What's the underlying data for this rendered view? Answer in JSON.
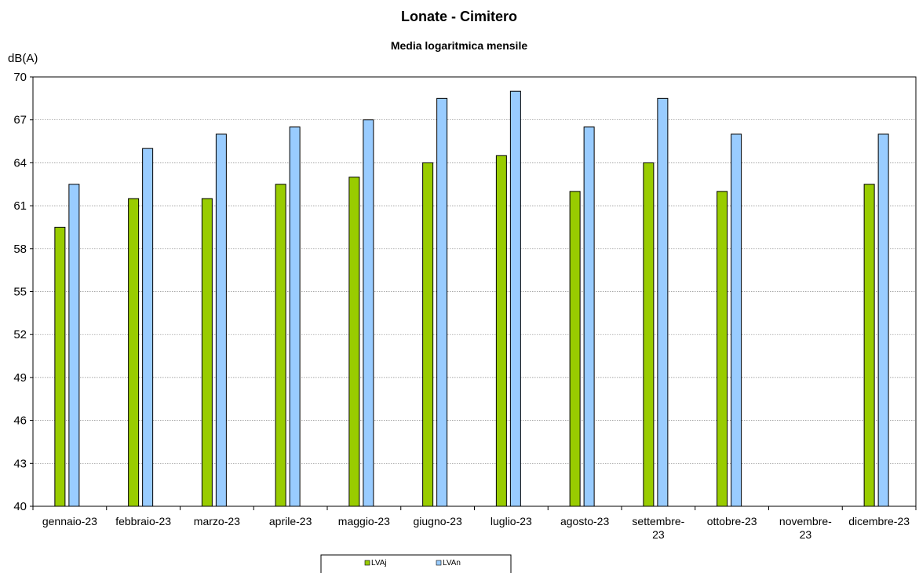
{
  "chart_data": {
    "type": "bar",
    "title": "Lonate - Cimitero",
    "subtitle": "Media logaritmica mensile",
    "ylabel": "dB(A)",
    "ylim": [
      40,
      70
    ],
    "yticks": [
      "40",
      "43",
      "46",
      "49",
      "52",
      "55",
      "58",
      "61",
      "64",
      "67",
      "70"
    ],
    "grid": true,
    "legend_position": "bottom",
    "categories": [
      [
        "gennaio-23"
      ],
      [
        "febbraio-23"
      ],
      [
        "marzo-23"
      ],
      [
        "aprile-23"
      ],
      [
        "maggio-23"
      ],
      [
        "giugno-23"
      ],
      [
        "luglio-23"
      ],
      [
        "agosto-23"
      ],
      [
        "settembre-",
        "23"
      ],
      [
        "ottobre-23"
      ],
      [
        "novembre-",
        "23"
      ],
      [
        "dicembre-23"
      ]
    ],
    "series": [
      {
        "name": "LVAj",
        "color": "#99cc00",
        "values": [
          59.5,
          61.5,
          61.5,
          62.5,
          63.0,
          64.0,
          64.5,
          62.0,
          64.0,
          62.0,
          null,
          62.5
        ]
      },
      {
        "name": "LVAn",
        "color": "#99ccff",
        "values": [
          62.5,
          65.0,
          66.0,
          66.5,
          67.0,
          68.5,
          69.0,
          66.5,
          68.5,
          66.0,
          null,
          66.0
        ]
      }
    ]
  }
}
